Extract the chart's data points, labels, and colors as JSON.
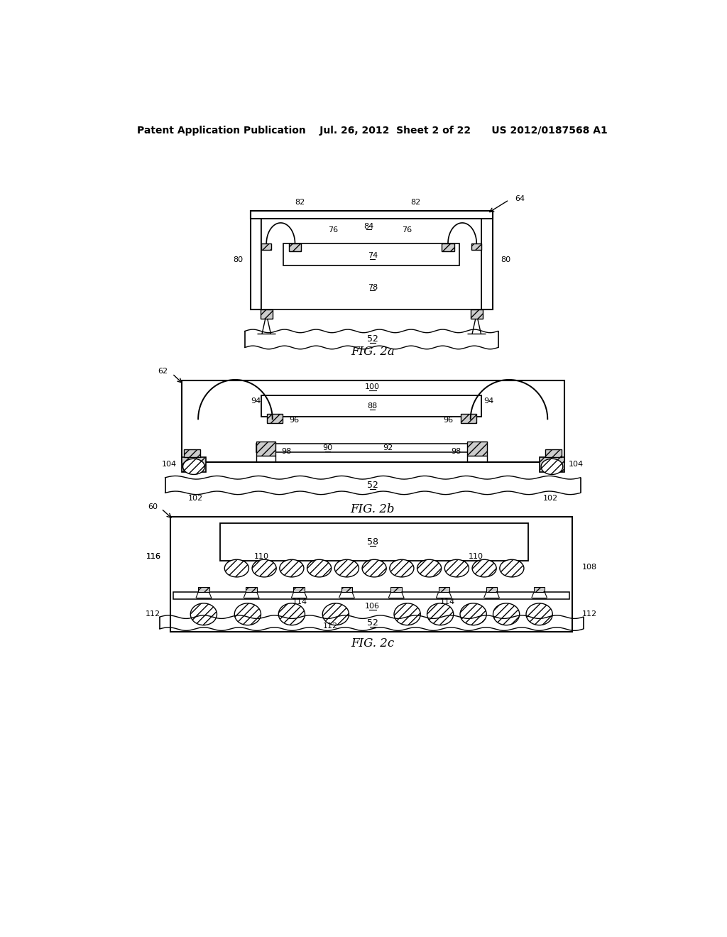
{
  "bg_color": "#ffffff",
  "header": "Patent Application Publication    Jul. 26, 2012  Sheet 2 of 22      US 2012/0187568 A1",
  "fig2a_label": "FIG. 2a",
  "fig2b_label": "FIG. 2b",
  "fig2c_label": "FIG. 2c"
}
